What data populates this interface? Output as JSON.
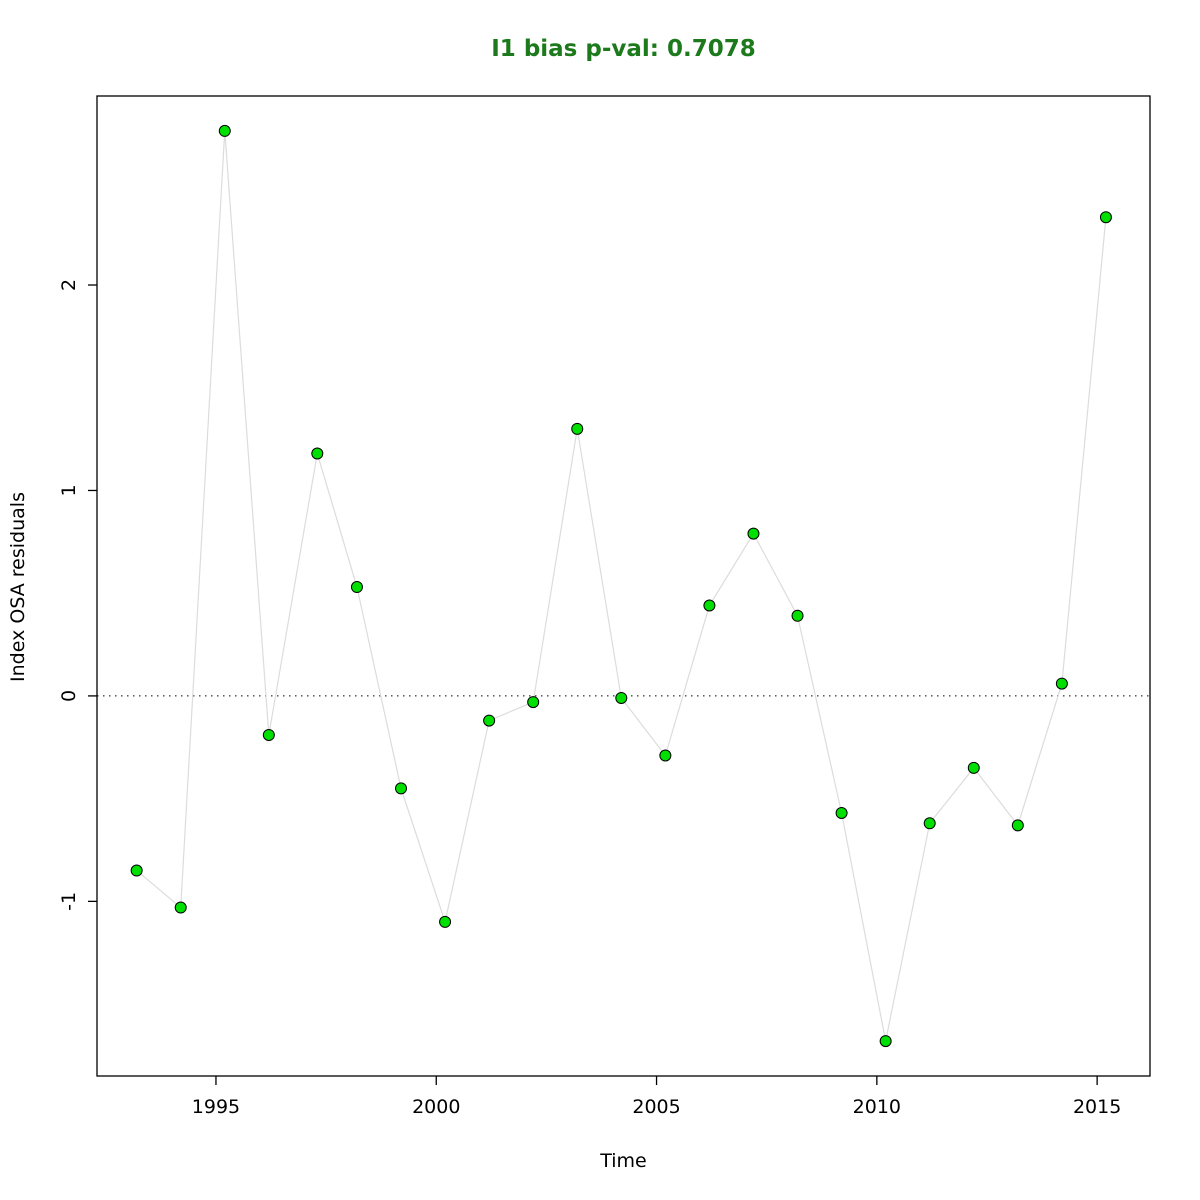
{
  "header": {
    "title": "I1 bias p-val: 0.7078",
    "title_color": "#1c7a1c"
  },
  "chart_data": {
    "type": "line",
    "title": "I1 bias p-val: 0.7078",
    "xlabel": "Time",
    "ylabel": "Index OSA residuals",
    "x": [
      1993.2,
      1994.2,
      1995.2,
      1996.2,
      1997.3,
      1998.2,
      1999.2,
      2000.2,
      2001.2,
      2002.2,
      2003.2,
      2004.2,
      2005.2,
      2006.2,
      2007.2,
      2008.2,
      2009.2,
      2010.2,
      2011.2,
      2012.2,
      2013.2,
      2014.2,
      2015.2
    ],
    "y": [
      -0.85,
      -1.03,
      2.75,
      -0.19,
      1.18,
      0.53,
      -0.45,
      -1.1,
      -0.12,
      -0.03,
      1.3,
      -0.01,
      -0.29,
      0.44,
      0.79,
      0.39,
      -0.57,
      -1.68,
      -0.62,
      -0.35,
      -0.63,
      0.06,
      2.33
    ],
    "xticks": [
      1995,
      2000,
      2005,
      2010,
      2015
    ],
    "yticks": [
      -1,
      0,
      1,
      2
    ],
    "xlim": [
      1992.3,
      2016.2
    ],
    "ylim": [
      -1.85,
      2.92
    ],
    "grid": "off",
    "legend": "none",
    "zero_line": 0,
    "colors": {
      "point_fill": "#00e000",
      "point_stroke": "#000000",
      "line": "#dcdcdc",
      "axis": "#000000",
      "zero_line": "#000000"
    }
  }
}
